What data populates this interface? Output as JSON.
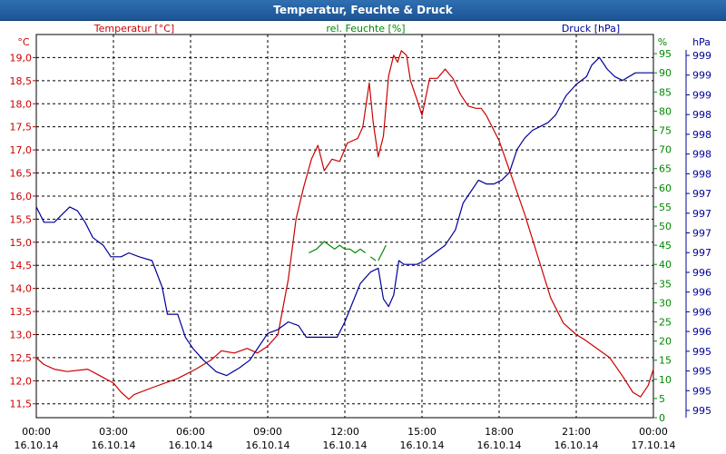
{
  "window": {
    "title": "Temperatur, Feuchte & Druck"
  },
  "colors": {
    "temperature": "#cc0000",
    "humidity": "#008800",
    "pressure": "#000099",
    "grid": "#000000",
    "axis_text": "#000000"
  },
  "chart_data": {
    "type": "line",
    "title": "Temperatur, Feuchte & Druck",
    "x_ticks": [
      {
        "hour": 0,
        "time": "00:00",
        "date": "16.10.14"
      },
      {
        "hour": 3,
        "time": "03:00",
        "date": "16.10.14"
      },
      {
        "hour": 6,
        "time": "06:00",
        "date": "16.10.14"
      },
      {
        "hour": 9,
        "time": "09:00",
        "date": "16.10.14"
      },
      {
        "hour": 12,
        "time": "12:00",
        "date": "16.10.14"
      },
      {
        "hour": 15,
        "time": "15:00",
        "date": "16.10.14"
      },
      {
        "hour": 18,
        "time": "18:00",
        "date": "16.10.14"
      },
      {
        "hour": 21,
        "time": "21:00",
        "date": "16.10.14"
      },
      {
        "hour": 24,
        "time": "00:00",
        "date": "17.10.14"
      }
    ],
    "xlim": [
      0,
      24
    ],
    "axes": {
      "temperature": {
        "label": "Temperatur [°C]",
        "unit": "°C",
        "range": [
          11.2,
          19.5
        ],
        "ticks": [
          "11,5",
          "12,0",
          "12,5",
          "13,0",
          "13,5",
          "14,0",
          "14,5",
          "15,0",
          "15,5",
          "16,0",
          "16,5",
          "17,0",
          "17,5",
          "18,0",
          "18,5",
          "19,0"
        ]
      },
      "humidity": {
        "label": "rel. Feuchte [%]",
        "unit": "%",
        "range": [
          0,
          100
        ],
        "ticks": [
          "0",
          "5",
          "10",
          "15",
          "20",
          "25",
          "30",
          "35",
          "40",
          "45",
          "50",
          "55",
          "60",
          "65",
          "70",
          "75",
          "80",
          "85",
          "90",
          "95"
        ]
      },
      "pressure": {
        "label": "Druck [hPa]",
        "unit": "hPa",
        "range": [
          994.5,
          999.5
        ],
        "ticks": [
          "995",
          "995",
          "995",
          "995",
          "996",
          "996",
          "996",
          "996",
          "997",
          "997",
          "997",
          "997",
          "998",
          "998",
          "998",
          "998",
          "999",
          "999",
          "999"
        ]
      }
    },
    "series": [
      {
        "name": "Temperatur",
        "axis": "temperature",
        "points": [
          [
            0,
            12.5
          ],
          [
            0.3,
            12.35
          ],
          [
            0.7,
            12.25
          ],
          [
            1.2,
            12.2
          ],
          [
            2,
            12.25
          ],
          [
            2.5,
            12.1
          ],
          [
            3,
            11.95
          ],
          [
            3.3,
            11.75
          ],
          [
            3.6,
            11.6
          ],
          [
            3.8,
            11.7
          ],
          [
            4.5,
            11.85
          ],
          [
            5.5,
            12.05
          ],
          [
            6.2,
            12.25
          ],
          [
            6.8,
            12.45
          ],
          [
            7.2,
            12.65
          ],
          [
            7.7,
            12.6
          ],
          [
            8.2,
            12.7
          ],
          [
            8.6,
            12.6
          ],
          [
            9,
            12.75
          ],
          [
            9.4,
            13.0
          ],
          [
            9.8,
            14.2
          ],
          [
            10.1,
            15.5
          ],
          [
            10.4,
            16.2
          ],
          [
            10.7,
            16.8
          ],
          [
            10.95,
            17.1
          ],
          [
            11.2,
            16.55
          ],
          [
            11.5,
            16.8
          ],
          [
            11.8,
            16.75
          ],
          [
            12.1,
            17.15
          ],
          [
            12.5,
            17.25
          ],
          [
            12.7,
            17.5
          ],
          [
            12.95,
            18.45
          ],
          [
            13.1,
            17.6
          ],
          [
            13.3,
            16.85
          ],
          [
            13.5,
            17.3
          ],
          [
            13.7,
            18.6
          ],
          [
            13.9,
            19.05
          ],
          [
            14.05,
            18.9
          ],
          [
            14.2,
            19.15
          ],
          [
            14.4,
            19.05
          ],
          [
            14.55,
            18.5
          ],
          [
            14.8,
            18.1
          ],
          [
            15.0,
            17.75
          ],
          [
            15.3,
            18.55
          ],
          [
            15.6,
            18.55
          ],
          [
            15.9,
            18.75
          ],
          [
            16.2,
            18.55
          ],
          [
            16.5,
            18.2
          ],
          [
            16.8,
            17.95
          ],
          [
            17.1,
            17.9
          ],
          [
            17.3,
            17.9
          ],
          [
            17.5,
            17.75
          ],
          [
            18.0,
            17.2
          ],
          [
            18.5,
            16.4
          ],
          [
            19.0,
            15.6
          ],
          [
            19.5,
            14.7
          ],
          [
            20.0,
            13.8
          ],
          [
            20.5,
            13.25
          ],
          [
            21.0,
            13.0
          ],
          [
            21.3,
            12.9
          ],
          [
            21.8,
            12.7
          ],
          [
            22.3,
            12.5
          ],
          [
            22.8,
            12.1
          ],
          [
            23.2,
            11.75
          ],
          [
            23.5,
            11.65
          ],
          [
            23.8,
            11.9
          ],
          [
            24.0,
            12.25
          ]
        ]
      },
      {
        "name": "rel. Feuchte",
        "axis": "humidity",
        "segments": [
          [
            [
              10.6,
              43
            ],
            [
              10.9,
              44
            ],
            [
              11.2,
              46
            ],
            [
              11.4,
              45
            ],
            [
              11.6,
              44
            ],
            [
              11.8,
              45
            ],
            [
              12.0,
              44
            ],
            [
              12.2,
              44
            ],
            [
              12.4,
              43
            ],
            [
              12.6,
              44
            ],
            [
              12.8,
              43
            ]
          ],
          [
            [
              13.0,
              42
            ],
            [
              13.2,
              41
            ]
          ],
          [
            [
              13.3,
              41
            ],
            [
              13.6,
              45
            ]
          ]
        ]
      },
      {
        "name": "Druck",
        "axis": "pressure",
        "points": [
          [
            0,
            997.25
          ],
          [
            0.3,
            997.05
          ],
          [
            0.7,
            997.05
          ],
          [
            1.0,
            997.15
          ],
          [
            1.3,
            997.25
          ],
          [
            1.6,
            997.2
          ],
          [
            1.9,
            997.05
          ],
          [
            2.2,
            996.85
          ],
          [
            2.6,
            996.75
          ],
          [
            2.9,
            996.6
          ],
          [
            3.3,
            996.6
          ],
          [
            3.6,
            996.65
          ],
          [
            4.0,
            996.6
          ],
          [
            4.5,
            996.55
          ],
          [
            4.9,
            996.2
          ],
          [
            5.1,
            995.85
          ],
          [
            5.5,
            995.85
          ],
          [
            5.8,
            995.55
          ],
          [
            6.1,
            995.4
          ],
          [
            6.5,
            995.25
          ],
          [
            7.0,
            995.1
          ],
          [
            7.4,
            995.05
          ],
          [
            7.9,
            995.15
          ],
          [
            8.3,
            995.25
          ],
          [
            8.6,
            995.4
          ],
          [
            9.0,
            995.6
          ],
          [
            9.4,
            995.65
          ],
          [
            9.8,
            995.75
          ],
          [
            10.2,
            995.7
          ],
          [
            10.5,
            995.55
          ],
          [
            11.2,
            995.55
          ],
          [
            11.7,
            995.55
          ],
          [
            12.0,
            995.75
          ],
          [
            12.3,
            996.0
          ],
          [
            12.6,
            996.25
          ],
          [
            13.0,
            996.4
          ],
          [
            13.3,
            996.45
          ],
          [
            13.5,
            996.05
          ],
          [
            13.7,
            995.95
          ],
          [
            13.9,
            996.1
          ],
          [
            14.1,
            996.55
          ],
          [
            14.3,
            996.5
          ],
          [
            14.5,
            996.5
          ],
          [
            14.8,
            996.5
          ],
          [
            15.1,
            996.55
          ],
          [
            15.5,
            996.65
          ],
          [
            15.9,
            996.75
          ],
          [
            16.3,
            996.95
          ],
          [
            16.6,
            997.3
          ],
          [
            16.9,
            997.45
          ],
          [
            17.2,
            997.6
          ],
          [
            17.5,
            997.55
          ],
          [
            17.8,
            997.55
          ],
          [
            18.1,
            997.6
          ],
          [
            18.4,
            997.7
          ],
          [
            18.7,
            998.0
          ],
          [
            19.0,
            998.15
          ],
          [
            19.3,
            998.25
          ],
          [
            19.6,
            998.3
          ],
          [
            19.9,
            998.35
          ],
          [
            20.2,
            998.45
          ],
          [
            20.6,
            998.7
          ],
          [
            21.0,
            998.85
          ],
          [
            21.4,
            998.95
          ],
          [
            21.6,
            999.1
          ],
          [
            21.9,
            999.2
          ],
          [
            22.2,
            999.05
          ],
          [
            22.5,
            998.95
          ],
          [
            22.8,
            998.9
          ],
          [
            23.3,
            999.0
          ],
          [
            24.0,
            999.0
          ]
        ]
      }
    ]
  }
}
